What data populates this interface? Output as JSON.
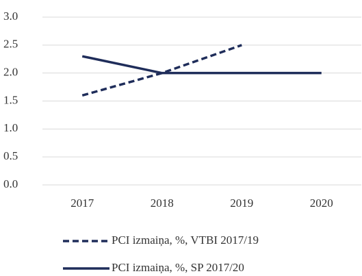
{
  "chart_data": {
    "type": "line",
    "categories": [
      "2017",
      "2018",
      "2019",
      "2020"
    ],
    "series": [
      {
        "name": "PCI izmaiņa, %, VTBI 2017/19",
        "color": "#1f2d5a",
        "style": "dashed",
        "values": [
          1.6,
          2.0,
          2.5,
          null
        ]
      },
      {
        "name": "PCI izmaiņa, %, SP 2017/20",
        "color": "#1f2d5a",
        "style": "solid",
        "values": [
          2.3,
          2.0,
          2.0,
          2.0
        ]
      }
    ],
    "ylim": [
      0,
      3
    ],
    "yticks": [
      {
        "value": 0,
        "label": "0.0"
      },
      0.5,
      {
        "value": 1,
        "label": "1.0"
      },
      1.5,
      {
        "value": 2,
        "label": "2.0"
      },
      2.5,
      {
        "value": 3,
        "label": "3.0"
      }
    ],
    "grid": true,
    "legend": "bottom"
  }
}
